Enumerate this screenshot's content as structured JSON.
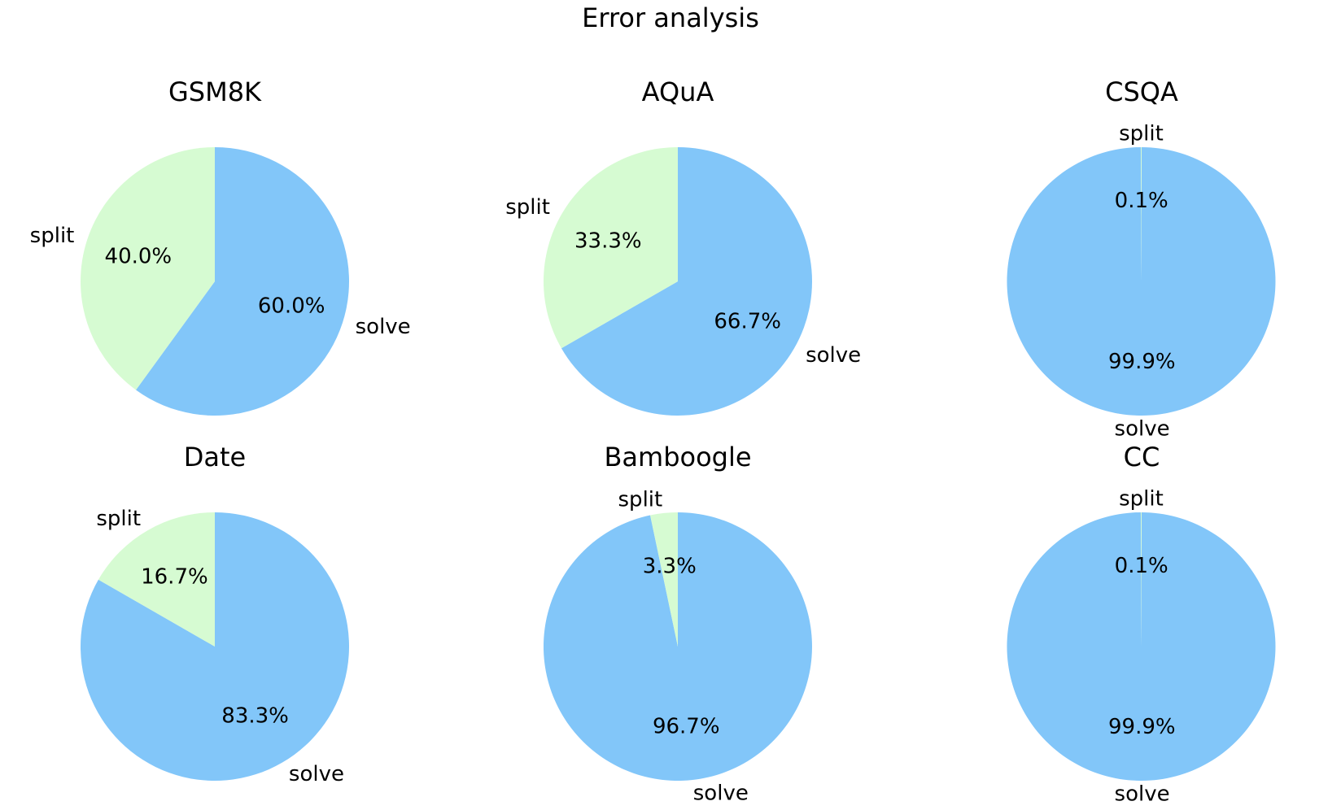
{
  "title": "Error analysis",
  "colors": {
    "solve": "#82c6f9",
    "split": "#d6fbd2"
  },
  "chart_data": [
    {
      "type": "pie",
      "title": "GSM8K",
      "labels": [
        "solve",
        "split"
      ],
      "values": [
        60.0,
        40.0
      ],
      "pct_labels": [
        "60.0%",
        "40.0%"
      ]
    },
    {
      "type": "pie",
      "title": "AQuA",
      "labels": [
        "solve",
        "split"
      ],
      "values": [
        66.7,
        33.3
      ],
      "pct_labels": [
        "66.7%",
        "33.3%"
      ]
    },
    {
      "type": "pie",
      "title": "CSQA",
      "labels": [
        "solve",
        "split"
      ],
      "values": [
        99.9,
        0.1
      ],
      "pct_labels": [
        "99.9%",
        "0.1%"
      ]
    },
    {
      "type": "pie",
      "title": "Date",
      "labels": [
        "solve",
        "split"
      ],
      "values": [
        83.3,
        16.7
      ],
      "pct_labels": [
        "83.3%",
        "16.7%"
      ]
    },
    {
      "type": "pie",
      "title": "Bamboogle",
      "labels": [
        "solve",
        "split"
      ],
      "values": [
        96.7,
        3.3
      ],
      "pct_labels": [
        "96.7%",
        "3.3%"
      ]
    },
    {
      "type": "pie",
      "title": "CC",
      "labels": [
        "solve",
        "split"
      ],
      "values": [
        99.9,
        0.1
      ],
      "pct_labels": [
        "99.9%",
        "0.1%"
      ]
    }
  ]
}
